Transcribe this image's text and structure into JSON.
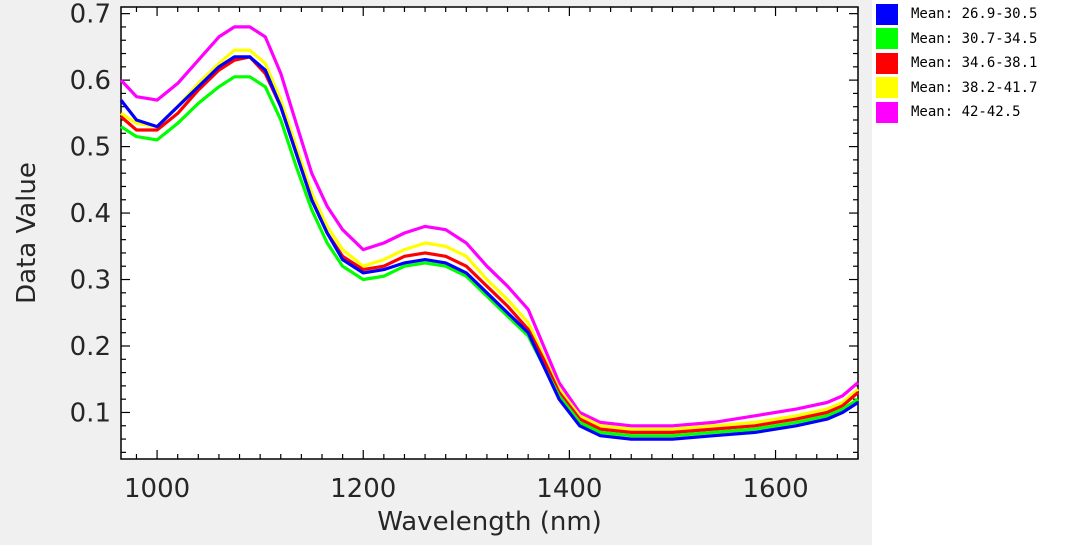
{
  "chart_data": {
    "type": "line",
    "title": "",
    "xlabel": "Wavelength (nm)",
    "ylabel": "Data Value",
    "xlim": [
      965,
      1680
    ],
    "ylim": [
      0.03,
      0.71
    ],
    "xticks": [
      1000,
      1200,
      1400,
      1600
    ],
    "yticks": [
      0.1,
      0.2,
      0.3,
      0.4,
      0.5,
      0.6,
      0.7
    ],
    "xtick_labels": [
      "1000",
      "1200",
      "1400",
      "1600"
    ],
    "ytick_labels": [
      "0.1",
      "0.2",
      "0.3",
      "0.4",
      "0.5",
      "0.6",
      "0.7"
    ],
    "grid": false,
    "legend_position": "right",
    "x": [
      965,
      980,
      1000,
      1020,
      1040,
      1060,
      1075,
      1090,
      1105,
      1120,
      1135,
      1150,
      1165,
      1180,
      1200,
      1220,
      1240,
      1260,
      1280,
      1300,
      1320,
      1340,
      1360,
      1375,
      1390,
      1410,
      1430,
      1460,
      1500,
      1540,
      1580,
      1620,
      1650,
      1665,
      1680
    ],
    "series": [
      {
        "name": "Mean: 26.9-30.5",
        "color": "#0000ff",
        "values": [
          0.57,
          0.54,
          0.53,
          0.56,
          0.59,
          0.62,
          0.635,
          0.635,
          0.615,
          0.56,
          0.49,
          0.42,
          0.37,
          0.33,
          0.31,
          0.315,
          0.325,
          0.33,
          0.325,
          0.31,
          0.28,
          0.25,
          0.22,
          0.17,
          0.12,
          0.08,
          0.065,
          0.06,
          0.06,
          0.065,
          0.07,
          0.08,
          0.09,
          0.1,
          0.115
        ]
      },
      {
        "name": "Mean: 30.7-34.5",
        "color": "#00ff00",
        "values": [
          0.53,
          0.515,
          0.51,
          0.535,
          0.565,
          0.59,
          0.605,
          0.605,
          0.59,
          0.54,
          0.47,
          0.405,
          0.355,
          0.32,
          0.3,
          0.305,
          0.32,
          0.325,
          0.32,
          0.305,
          0.275,
          0.245,
          0.215,
          0.17,
          0.125,
          0.085,
          0.07,
          0.065,
          0.065,
          0.07,
          0.075,
          0.085,
          0.095,
          0.105,
          0.12
        ]
      },
      {
        "name": "Mean: 34.6-38.1",
        "color": "#ff0000",
        "values": [
          0.545,
          0.525,
          0.525,
          0.55,
          0.585,
          0.615,
          0.63,
          0.635,
          0.61,
          0.56,
          0.49,
          0.42,
          0.37,
          0.335,
          0.315,
          0.32,
          0.335,
          0.34,
          0.335,
          0.32,
          0.29,
          0.26,
          0.225,
          0.18,
          0.13,
          0.09,
          0.075,
          0.07,
          0.07,
          0.075,
          0.08,
          0.09,
          0.1,
          0.11,
          0.13
        ]
      },
      {
        "name": "Mean: 38.2-41.7",
        "color": "#ffff00",
        "values": [
          0.55,
          0.535,
          0.53,
          0.56,
          0.595,
          0.625,
          0.645,
          0.645,
          0.625,
          0.57,
          0.5,
          0.43,
          0.38,
          0.345,
          0.32,
          0.33,
          0.345,
          0.355,
          0.35,
          0.335,
          0.3,
          0.27,
          0.235,
          0.185,
          0.135,
          0.095,
          0.08,
          0.075,
          0.075,
          0.08,
          0.085,
          0.095,
          0.105,
          0.115,
          0.135
        ]
      },
      {
        "name": "Mean: 42-42.5",
        "color": "#ff00ff",
        "values": [
          0.6,
          0.575,
          0.57,
          0.595,
          0.63,
          0.665,
          0.68,
          0.68,
          0.665,
          0.61,
          0.535,
          0.46,
          0.41,
          0.375,
          0.345,
          0.355,
          0.37,
          0.38,
          0.375,
          0.355,
          0.32,
          0.29,
          0.255,
          0.2,
          0.145,
          0.1,
          0.085,
          0.08,
          0.08,
          0.085,
          0.095,
          0.105,
          0.115,
          0.125,
          0.145
        ]
      }
    ]
  }
}
